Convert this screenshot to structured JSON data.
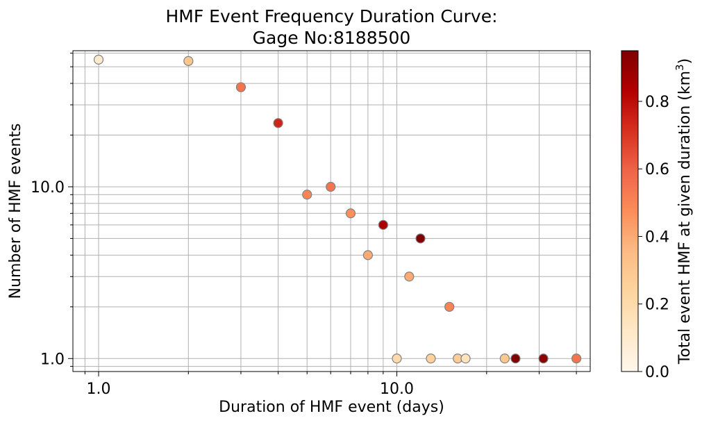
{
  "chart_data": {
    "type": "scatter",
    "title": [
      "HMF Event Frequency Duration Curve:",
      "Gage No:8188500"
    ],
    "xlabel": "Duration of HMF event (days)",
    "ylabel": "Number of HMF events",
    "xscale": "log",
    "yscale": "log",
    "xlim": [
      0.82,
      44.5
    ],
    "ylim": [
      0.84,
      62
    ],
    "xticks": [
      {
        "value": 1,
        "label": "1.0"
      },
      {
        "value": 10,
        "label": "10.0"
      }
    ],
    "yticks": [
      {
        "value": 1,
        "label": "1.0"
      },
      {
        "value": 10,
        "label": "10.0"
      }
    ],
    "grid": true,
    "points": [
      {
        "x": 1,
        "y": 55,
        "c": 0.1
      },
      {
        "x": 2,
        "y": 54,
        "c": 0.3
      },
      {
        "x": 3,
        "y": 38,
        "c": 0.55
      },
      {
        "x": 4,
        "y": 23.5,
        "c": 0.74
      },
      {
        "x": 5,
        "y": 9,
        "c": 0.5
      },
      {
        "x": 6,
        "y": 10,
        "c": 0.55
      },
      {
        "x": 7,
        "y": 7,
        "c": 0.47
      },
      {
        "x": 8,
        "y": 4,
        "c": 0.4
      },
      {
        "x": 9,
        "y": 6,
        "c": 0.85
      },
      {
        "x": 10,
        "y": 1,
        "c": 0.2
      },
      {
        "x": 11,
        "y": 3,
        "c": 0.4
      },
      {
        "x": 12,
        "y": 5,
        "c": 0.95
      },
      {
        "x": 13,
        "y": 1,
        "c": 0.25
      },
      {
        "x": 15,
        "y": 2,
        "c": 0.5
      },
      {
        "x": 16,
        "y": 1,
        "c": 0.28
      },
      {
        "x": 17,
        "y": 1,
        "c": 0.15
      },
      {
        "x": 23,
        "y": 1,
        "c": 0.3
      },
      {
        "x": 25,
        "y": 1,
        "c": 0.95
      },
      {
        "x": 31,
        "y": 1,
        "c": 0.92
      },
      {
        "x": 40,
        "y": 1,
        "c": 0.55
      }
    ],
    "colorbar": {
      "label": "Total event HMF at given duration (km³)",
      "label_main": "Total event HMF at given duration (km",
      "label_sup": "3",
      "label_end": ")",
      "min": 0,
      "max": 0.95,
      "ticks": [
        {
          "value": 0.0,
          "label": "0.0"
        },
        {
          "value": 0.2,
          "label": "0.2"
        },
        {
          "value": 0.4,
          "label": "0.4"
        },
        {
          "value": 0.6,
          "label": "0.6"
        },
        {
          "value": 0.8,
          "label": "0.8"
        }
      ],
      "cmap": [
        "#fff7ec",
        "#fee8c8",
        "#fdd49e",
        "#fdbb84",
        "#fc8d59",
        "#ef6548",
        "#d7301f",
        "#b30000",
        "#7f0000"
      ]
    },
    "marker_edge_color": "#808080",
    "grid_color": "#b0b0b0"
  }
}
